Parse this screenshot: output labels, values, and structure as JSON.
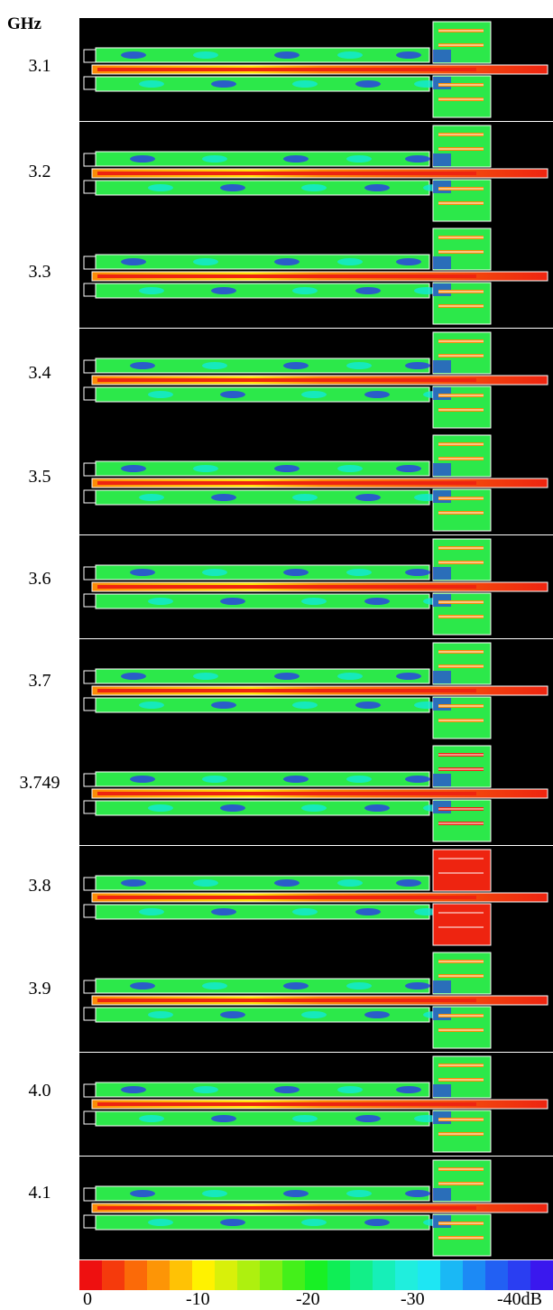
{
  "unit_label": "GHz",
  "frequencies": [
    "3.1",
    "3.2",
    "3.3",
    "3.4",
    "3.5",
    "3.6",
    "3.7",
    "3.749",
    "3.8",
    "3.9",
    "4.0",
    "4.1"
  ],
  "resonance_frequency": "3.749",
  "colorbar": {
    "colors": [
      "#ee1010",
      "#f53a0c",
      "#fb6a08",
      "#fd9506",
      "#ffc205",
      "#fff200",
      "#d8f00a",
      "#aef00f",
      "#7ff014",
      "#44f01a",
      "#18f024",
      "#0fee55",
      "#12ef88",
      "#16efb8",
      "#20eedd",
      "#1ee6f3",
      "#1ab8f5",
      "#1c8af5",
      "#2260f3",
      "#2a3ef2",
      "#3a18ee"
    ],
    "ticks": [
      "0",
      "-10",
      "-20",
      "-30",
      "-40dB"
    ]
  },
  "field_colors": {
    "background": "#000000",
    "outline": "#ffffff",
    "red": "#ee2410",
    "orange": "#fb8a06",
    "yellow": "#ffe40a",
    "green": "#2ce84a",
    "cyan": "#12e8d8",
    "blue": "#2a3ae8"
  }
}
